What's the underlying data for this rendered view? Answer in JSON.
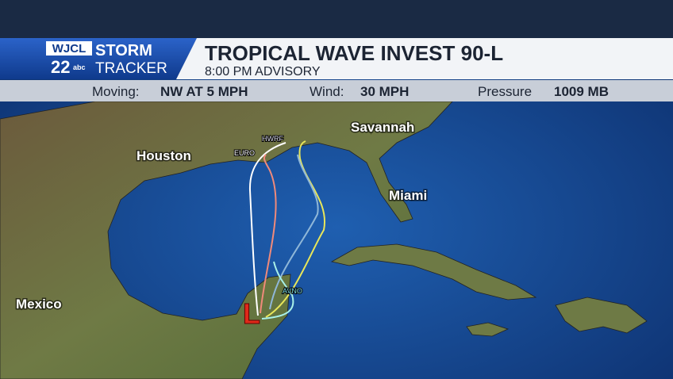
{
  "logo": {
    "station": "WJCL",
    "channel": "22",
    "network": "abc",
    "brand_top": "STORM",
    "brand_bottom": "TRACKER"
  },
  "header": {
    "title": "TROPICAL WAVE INVEST 90-L",
    "subtitle": "8:00 PM ADVISORY"
  },
  "info": {
    "moving_label": "Moving:",
    "moving_value": "NW AT 5 MPH",
    "wind_label": "Wind:",
    "wind_value": "30 MPH",
    "pressure_label": "Pressure",
    "pressure_value": "1009 MB"
  },
  "map": {
    "cities": [
      "Savannah",
      "Houston",
      "Miami",
      "Mexico"
    ],
    "models": [
      "EURO",
      "HWRF",
      "AVNO"
    ],
    "low_marker": "L"
  }
}
